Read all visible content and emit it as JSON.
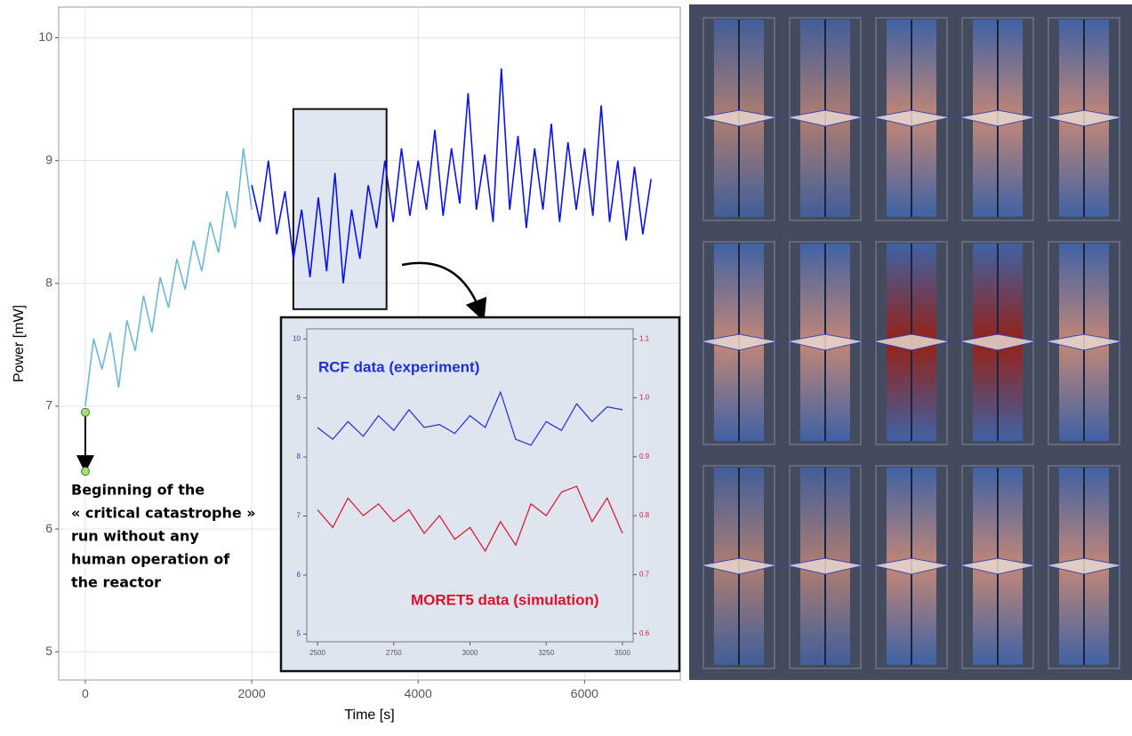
{
  "chart_data": [
    {
      "type": "line",
      "x_label": "Time [s]",
      "y_label": "Power [mW]",
      "xlim": [
        -320,
        7150
      ],
      "ylim": [
        4.77,
        10.25
      ],
      "xticks": [
        0,
        2000,
        4000,
        6000
      ],
      "yticks": [
        5,
        6,
        7,
        8,
        9,
        10
      ],
      "grid": true,
      "series": [
        {
          "color": "#6ab8da",
          "x": [
            0,
            100,
            200,
            300,
            400,
            500,
            600,
            700,
            800,
            900,
            1000,
            1100,
            1200,
            1300,
            1400,
            1500,
            1600,
            1700,
            1800,
            1900,
            2000
          ],
          "values": [
            7.0,
            7.55,
            7.3,
            7.6,
            7.15,
            7.7,
            7.45,
            7.9,
            7.6,
            8.05,
            7.8,
            8.2,
            7.95,
            8.35,
            8.1,
            8.5,
            8.25,
            8.75,
            8.45,
            9.1,
            8.6
          ]
        },
        {
          "color": "#0a14e6",
          "x": [
            2000,
            2100,
            2200,
            2300,
            2400,
            2500,
            2600,
            2700,
            2800,
            2900,
            3000,
            3100,
            3200,
            3300,
            3400,
            3500,
            3600,
            3700,
            3800,
            3900,
            4000,
            4100,
            4200,
            4300,
            4400,
            4500,
            4600,
            4700,
            4800,
            4900,
            5000,
            5100,
            5200,
            5300,
            5400,
            5500,
            5600,
            5700,
            5800,
            5900,
            6000,
            6100,
            6200,
            6300,
            6400,
            6500,
            6600,
            6700,
            6800
          ],
          "values": [
            8.8,
            8.5,
            9.0,
            8.4,
            8.75,
            8.2,
            8.6,
            8.05,
            8.7,
            8.1,
            8.9,
            8.0,
            8.6,
            8.2,
            8.8,
            8.45,
            9.0,
            8.5,
            9.1,
            8.55,
            9.0,
            8.6,
            9.25,
            8.55,
            9.1,
            8.65,
            9.55,
            8.6,
            9.05,
            8.5,
            9.75,
            8.6,
            9.2,
            8.45,
            9.1,
            8.6,
            9.3,
            8.5,
            9.15,
            8.6,
            9.1,
            8.55,
            9.45,
            8.5,
            9.0,
            8.35,
            8.95,
            8.4,
            8.85
          ]
        }
      ],
      "highlight": {
        "x": [
          2500,
          3620
        ],
        "y": [
          7.79,
          9.42
        ]
      },
      "markers": {
        "x": [
          0,
          0
        ],
        "y": [
          6.95,
          6.47
        ],
        "color": "#a6e07a"
      },
      "annotation": [
        "Beginning of the",
        "« critical catastrophe »",
        "run without any",
        "human operation of",
        "the reactor"
      ]
    },
    {
      "type": "line",
      "xlim": [
        2465,
        3535
      ],
      "ylim": [
        4.87,
        10.17
      ],
      "y2lim": [
        0.586,
        1.117
      ],
      "xticks": [
        2500,
        2750,
        3000,
        3250,
        3500
      ],
      "yticks": [
        5,
        6,
        7,
        8,
        9,
        10
      ],
      "y2ticks": [
        0.6,
        0.7,
        0.8,
        0.9,
        {
          "value": 1,
          "label": "1.0"
        },
        1.1
      ],
      "series": [
        {
          "name": "RCF data (experiment)",
          "color": "#1f2fe0",
          "x": [
            2500,
            2550,
            2600,
            2650,
            2700,
            2750,
            2800,
            2850,
            2900,
            2950,
            3000,
            3050,
            3100,
            3150,
            3200,
            3250,
            3300,
            3350,
            3400,
            3450,
            3500
          ],
          "values": [
            8.5,
            8.3,
            8.6,
            8.35,
            8.7,
            8.45,
            8.8,
            8.5,
            8.55,
            8.4,
            8.7,
            8.5,
            9.1,
            8.3,
            8.2,
            8.6,
            8.45,
            8.9,
            8.6,
            8.85,
            8.8
          ]
        },
        {
          "name": "MORET5 data (simulation)",
          "color": "#e0102a",
          "axis": "y2",
          "x": [
            2500,
            2550,
            2600,
            2650,
            2700,
            2750,
            2800,
            2850,
            2900,
            2950,
            3000,
            3050,
            3100,
            3150,
            3200,
            3250,
            3300,
            3350,
            3400,
            3450,
            3500
          ],
          "values": [
            0.81,
            0.78,
            0.83,
            0.8,
            0.82,
            0.79,
            0.81,
            0.77,
            0.8,
            0.76,
            0.78,
            0.74,
            0.79,
            0.75,
            0.82,
            0.8,
            0.84,
            0.85,
            0.79,
            0.83,
            0.77
          ]
        }
      ]
    }
  ]
}
